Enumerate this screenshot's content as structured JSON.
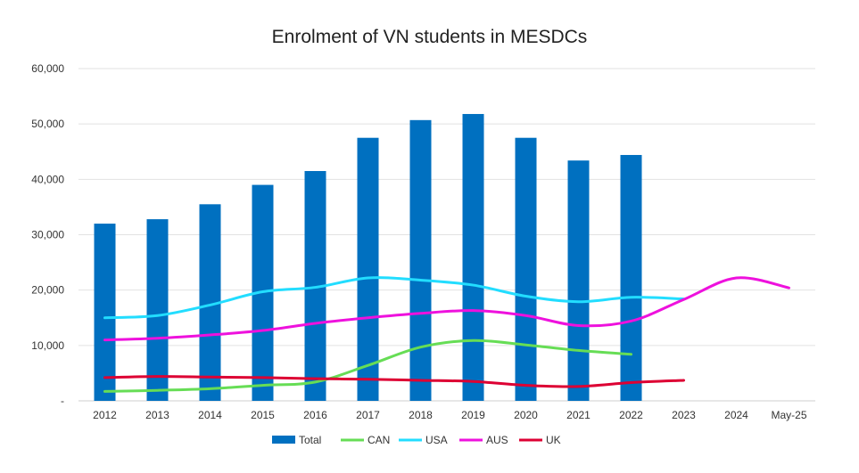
{
  "chart_data": {
    "type": "bar+line",
    "title": "Enrolment of VN students in MESDCs",
    "xlabel": "",
    "ylabel": "",
    "ylim": [
      0,
      60000
    ],
    "y_ticks": [
      0,
      10000,
      20000,
      30000,
      40000,
      50000,
      60000
    ],
    "y_tick_labels": [
      "-",
      "10,000",
      "20,000",
      "30,000",
      "40,000",
      "50,000",
      "60,000"
    ],
    "categories": [
      "2012",
      "2013",
      "2014",
      "2015",
      "2016",
      "2017",
      "2018",
      "2019",
      "2020",
      "2021",
      "2022",
      "2023",
      "2024",
      "May-25"
    ],
    "grid": true,
    "legend_position": "bottom",
    "series": [
      {
        "name": "Total",
        "kind": "bar",
        "color": "#0070C0",
        "values": [
          32000,
          32800,
          35500,
          39000,
          41500,
          47500,
          50700,
          51800,
          47500,
          43400,
          44400,
          null,
          null,
          null
        ]
      },
      {
        "name": "CAN",
        "kind": "line",
        "color": "#66DD55",
        "values": [
          1700,
          1900,
          2200,
          2800,
          3400,
          6400,
          9700,
          10900,
          10100,
          9100,
          8400,
          null,
          null,
          null
        ]
      },
      {
        "name": "USA",
        "kind": "line",
        "color": "#22DDFF",
        "values": [
          15000,
          15400,
          17300,
          19700,
          20500,
          22200,
          21800,
          20900,
          18900,
          17900,
          18700,
          18400,
          null,
          null
        ]
      },
      {
        "name": "AUS",
        "kind": "line",
        "color": "#EE11DD",
        "values": [
          11000,
          11300,
          11900,
          12700,
          14000,
          15000,
          15800,
          16300,
          15400,
          13600,
          14400,
          18300,
          22200,
          20400
        ]
      },
      {
        "name": "UK",
        "kind": "line",
        "color": "#DD0033",
        "values": [
          4200,
          4400,
          4300,
          4200,
          4000,
          3900,
          3700,
          3500,
          2800,
          2600,
          3300,
          3700,
          null,
          null
        ]
      }
    ]
  }
}
